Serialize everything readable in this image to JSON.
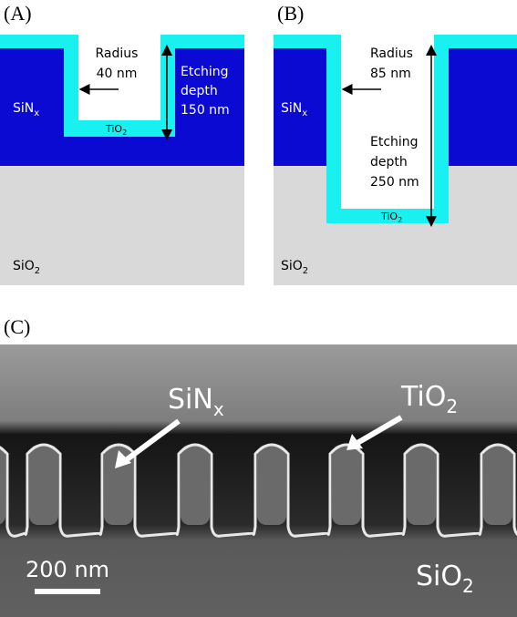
{
  "panels": [
    {
      "label": "(A)",
      "radius": [
        "Radius",
        "40 nm"
      ],
      "depth": [
        "Etching",
        "depth",
        "150 nm"
      ],
      "top_layer": {
        "base": "SiN",
        "sub": "x"
      },
      "coating": {
        "base": "TiO",
        "sub": "2"
      },
      "substrate": {
        "base": "SiO",
        "sub": "2"
      }
    },
    {
      "label": "(B)",
      "radius": [
        "Radius",
        "85 nm"
      ],
      "depth": [
        "Etching",
        "depth",
        "250 nm"
      ],
      "top_layer": {
        "base": "SiN",
        "sub": "x"
      },
      "coating": {
        "base": "TiO",
        "sub": "2"
      },
      "substrate": {
        "base": "SiO",
        "sub": "2"
      }
    }
  ],
  "sem": {
    "label": "(C)",
    "pillar": {
      "base": "SiN",
      "sub": "x"
    },
    "coating": {
      "base": "TiO",
      "sub": "2"
    },
    "substrate": {
      "base": "SiO",
      "sub": "2"
    },
    "scale_bar": "200 nm"
  }
}
